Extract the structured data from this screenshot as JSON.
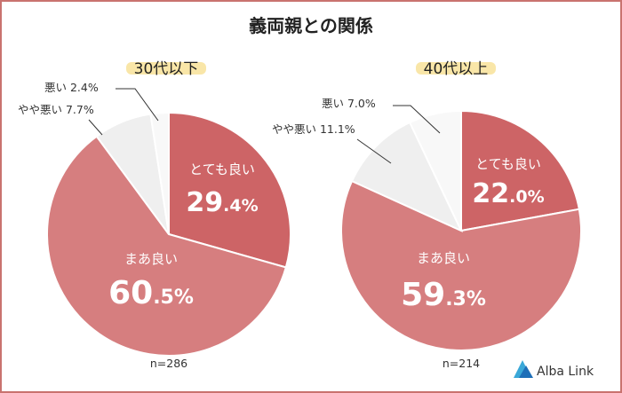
{
  "chart_data": [
    {
      "type": "pie",
      "title": "30代以下",
      "n": "n=286",
      "categories": [
        "とても良い",
        "まあ良い",
        "やや悪い",
        "悪い"
      ],
      "values": [
        29.4,
        60.5,
        7.7,
        2.4
      ],
      "value_int": [
        "29",
        "60",
        "",
        ""
      ],
      "value_dec": [
        ".4%",
        ".5%",
        "",
        ""
      ],
      "outside_labels": [
        "",
        "",
        "やや悪い 7.7%",
        "悪い 2.4%"
      ],
      "colors": [
        "#cd6466",
        "#d67e7f",
        "#efefef",
        "#f8f8f8"
      ]
    },
    {
      "type": "pie",
      "title": "40代以上",
      "n": "n=214",
      "categories": [
        "とても良い",
        "まあ良い",
        "やや悪い",
        "悪い"
      ],
      "values": [
        22.0,
        59.3,
        11.1,
        7.0
      ],
      "value_int": [
        "22",
        "59",
        "",
        ""
      ],
      "value_dec": [
        ".0%",
        ".3%",
        "",
        ""
      ],
      "outside_labels": [
        "",
        "",
        "やや悪い 11.1%",
        "悪い 7.0%"
      ],
      "colors": [
        "#cd6466",
        "#d67e7f",
        "#efefef",
        "#f8f8f8"
      ]
    }
  ],
  "header": {
    "title": "義両親との関係"
  },
  "branding": {
    "logo_text": "Alba Link",
    "logo_colors": [
      "#3aa8d8",
      "#1e6fb8"
    ]
  },
  "style": {
    "frame_border": "#c9736f",
    "group_highlight": "#f9e6a8"
  }
}
